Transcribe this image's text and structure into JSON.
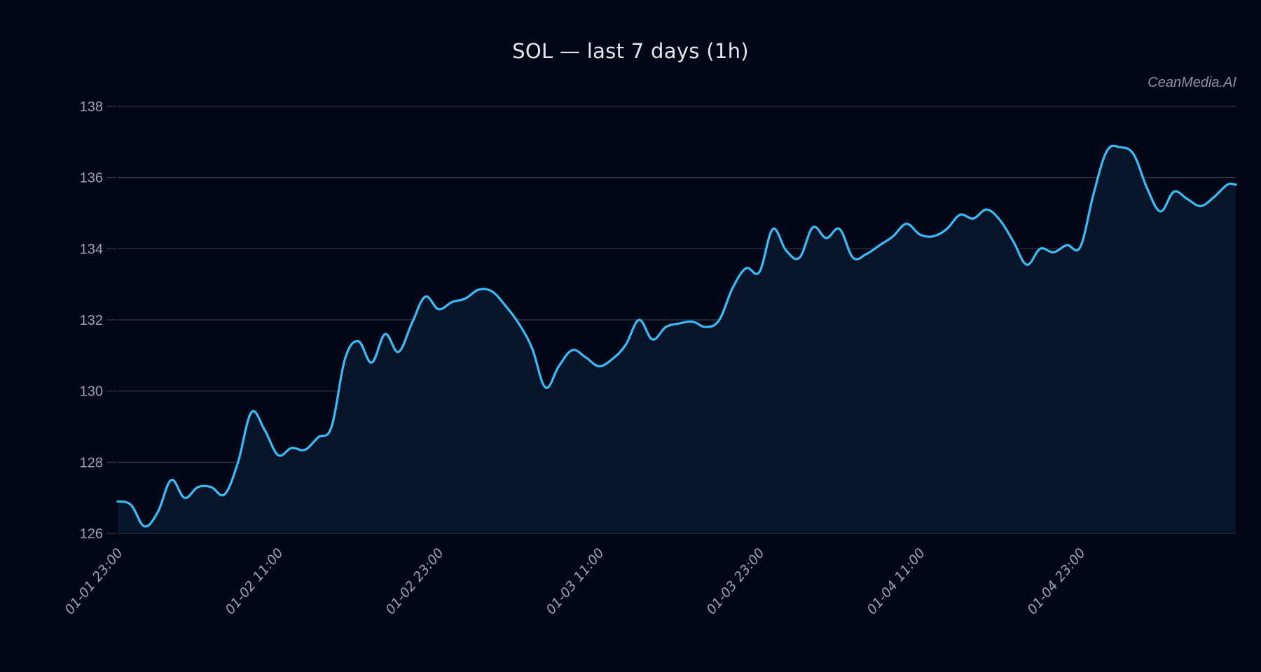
{
  "header": {
    "title": "SOL — last 7 days (1h)",
    "watermark": "CeanMedia.AI"
  },
  "colors": {
    "background": "#020617",
    "line": "#38bdf8",
    "fill": "#07152a",
    "grid": "#2a3342",
    "tick_text": "#9ca3af",
    "title_text": "#e5e7eb"
  },
  "chart_data": {
    "type": "area",
    "title": "SOL — last 7 days (1h)",
    "xlabel": "",
    "ylabel": "",
    "ylim": [
      126,
      138
    ],
    "yticks": [
      126,
      128,
      130,
      132,
      134,
      136,
      138
    ],
    "grid": true,
    "legend": null,
    "x_tick_labels": [
      "01-01 23:00",
      "01-02 11:00",
      "01-02 23:00",
      "01-03 11:00",
      "01-03 23:00",
      "01-04 11:00",
      "01-04 23:00"
    ],
    "x_tick_index": [
      0,
      12,
      24,
      36,
      48,
      60,
      72
    ],
    "x_start": "01-01 23:00",
    "x_interval": "1h",
    "series": [
      {
        "name": "SOL",
        "values": [
          126.9,
          126.8,
          126.2,
          126.6,
          127.5,
          127.0,
          127.3,
          127.3,
          127.1,
          128.0,
          129.4,
          128.9,
          128.2,
          128.4,
          128.35,
          128.7,
          129.0,
          130.9,
          131.4,
          130.8,
          131.6,
          131.1,
          131.9,
          132.65,
          132.3,
          132.5,
          132.6,
          132.85,
          132.8,
          132.4,
          131.9,
          131.2,
          130.1,
          130.7,
          131.15,
          130.95,
          130.7,
          130.9,
          131.3,
          132.0,
          131.45,
          131.8,
          131.9,
          131.95,
          131.8,
          132.0,
          132.9,
          133.45,
          133.35,
          134.55,
          133.95,
          133.75,
          134.6,
          134.3,
          134.55,
          133.75,
          133.85,
          134.1,
          134.35,
          134.7,
          134.4,
          134.35,
          134.55,
          134.95,
          134.85,
          135.1,
          134.8,
          134.2,
          133.55,
          134.0,
          133.9,
          134.1,
          134.05,
          135.55,
          136.75,
          136.85,
          136.65,
          135.7,
          135.05,
          135.6,
          135.4,
          135.2,
          135.45,
          135.8
        ]
      }
    ]
  }
}
